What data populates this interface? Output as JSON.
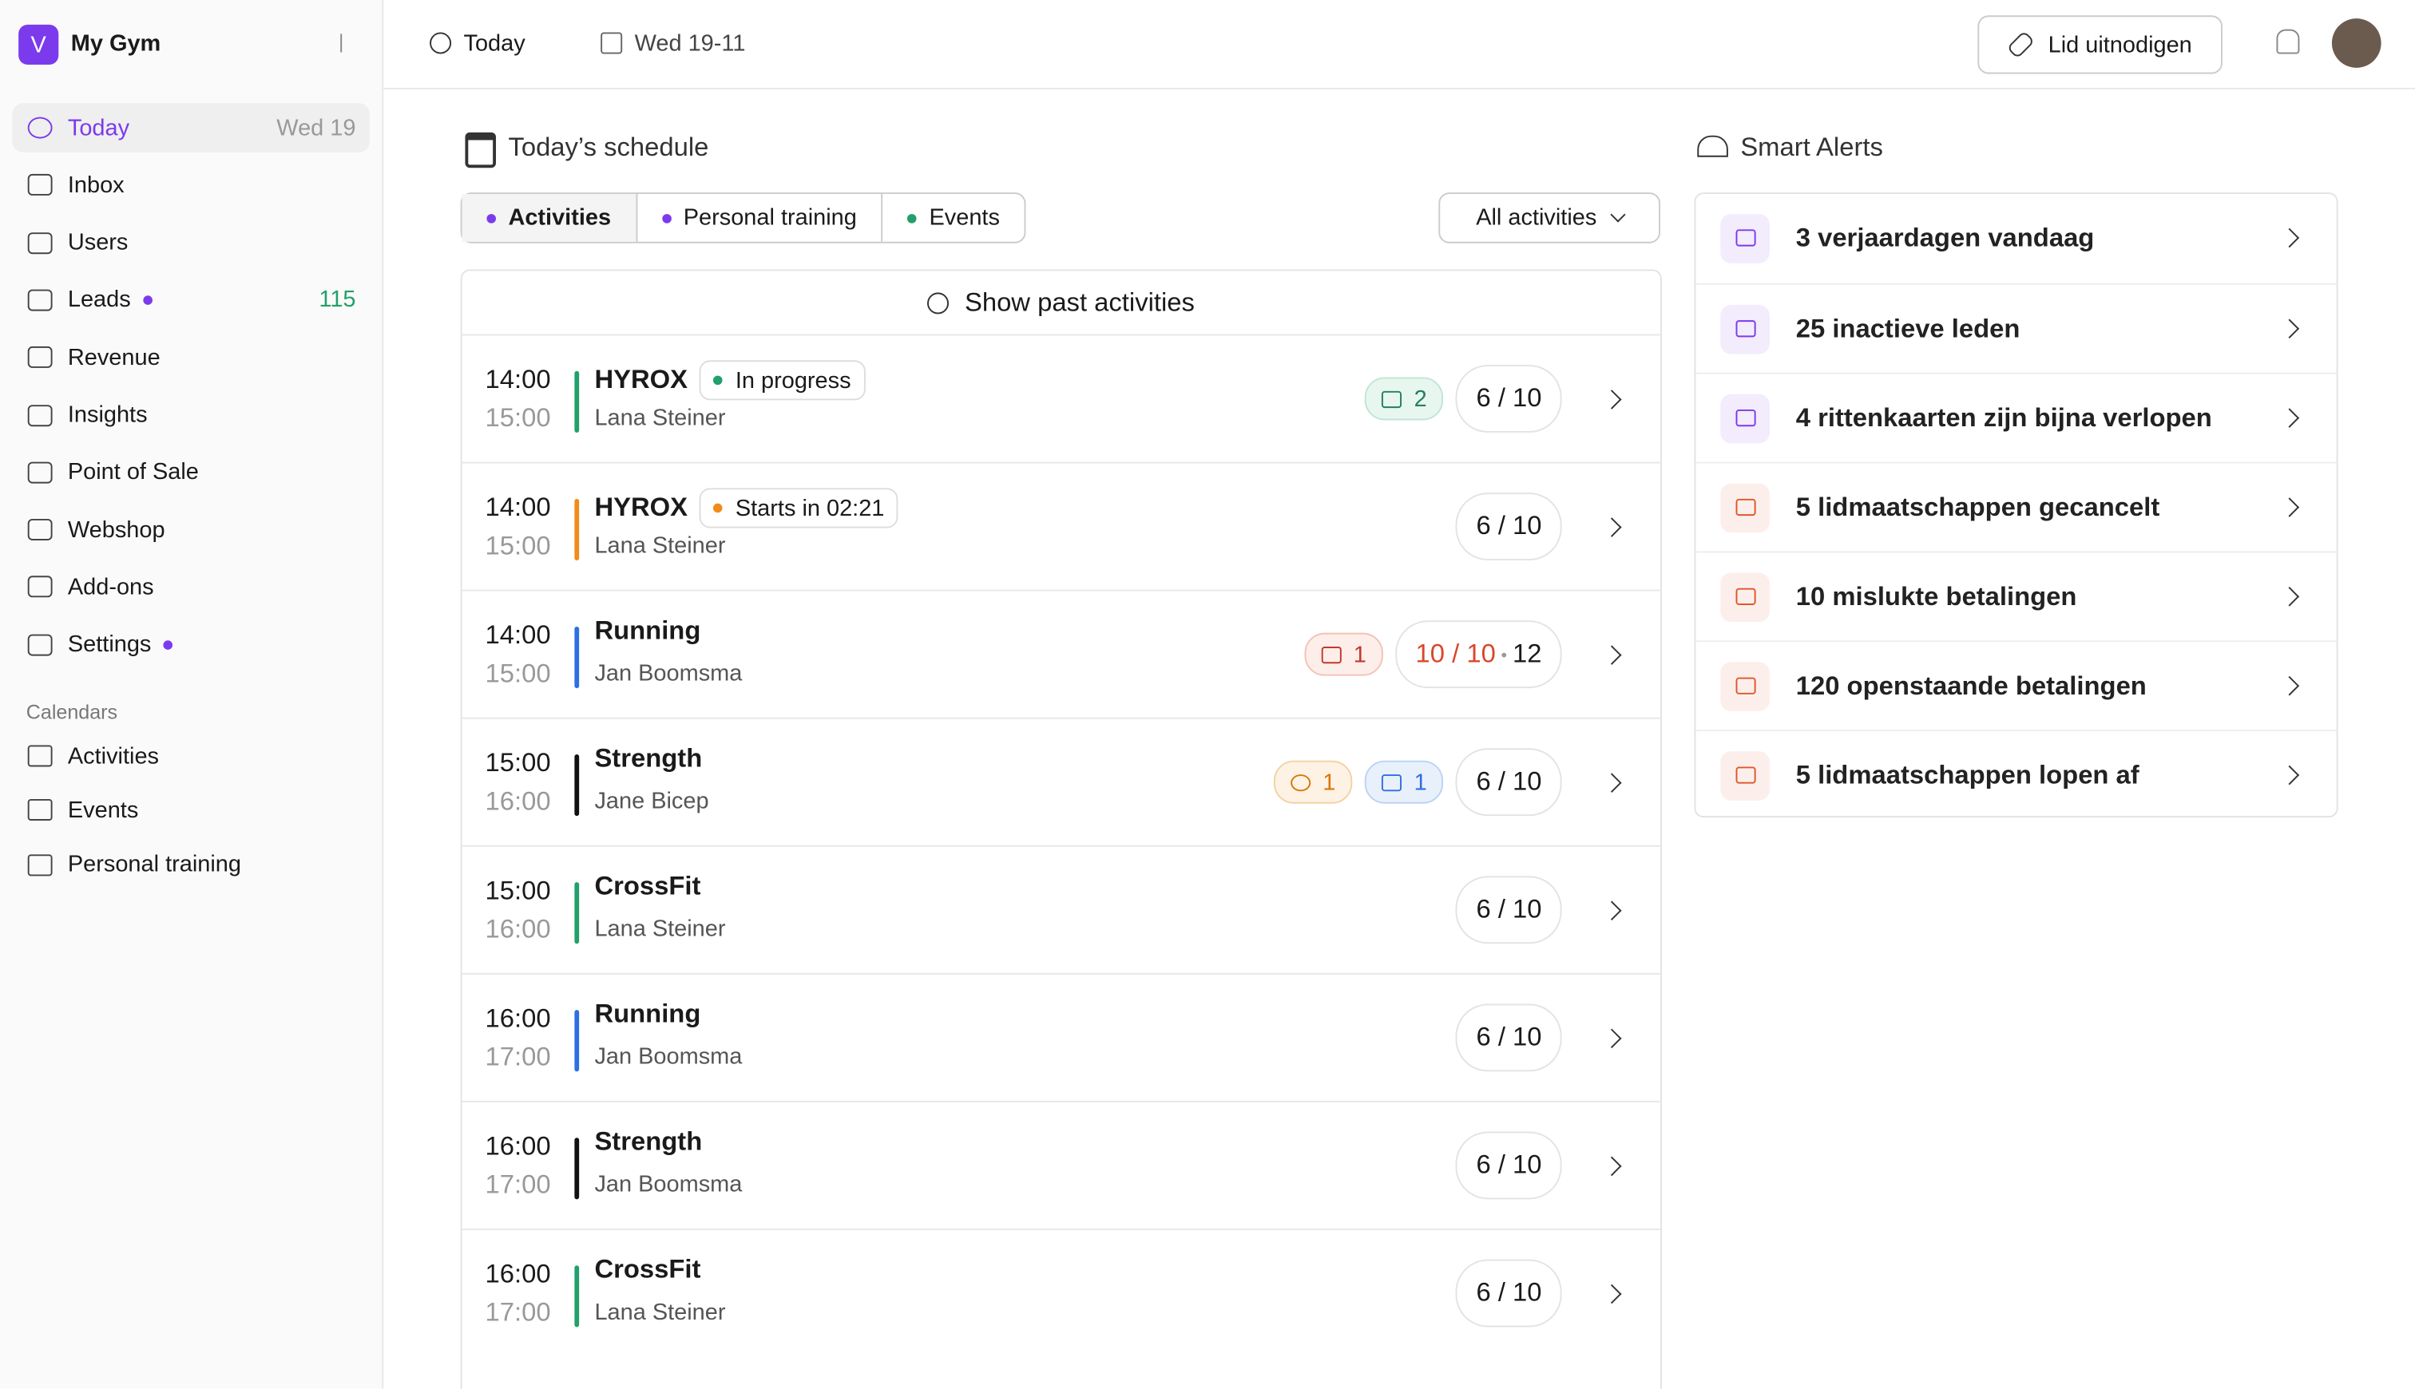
{
  "sidebar": {
    "brand_initial": "V",
    "brand": "My Gym",
    "nav": [
      {
        "label": "Today",
        "meta": "Wed 19",
        "active": true
      },
      {
        "label": "Inbox"
      },
      {
        "label": "Users"
      },
      {
        "label": "Leads",
        "dot": true,
        "meta": "115"
      },
      {
        "label": "Revenue"
      },
      {
        "label": "Insights"
      },
      {
        "label": "Point of Sale"
      },
      {
        "label": "Webshop"
      },
      {
        "label": "Add-ons"
      },
      {
        "label": "Settings",
        "dot": true
      }
    ],
    "section": "Calendars",
    "calendars": [
      "Activities",
      "Events",
      "Personal training"
    ]
  },
  "topbar": {
    "today": "Today",
    "date": "Wed 19-11",
    "invite": "Lid uitnodigen"
  },
  "schedule": {
    "title": "Today’s schedule",
    "tabs": [
      "Activities",
      "Personal training",
      "Events"
    ],
    "filter": "All activities",
    "past": "Show past activities",
    "rows": [
      {
        "start": "14:00",
        "end": "15:00",
        "name": "HYROX",
        "trainer": "Lana Steiner",
        "color": "#22a06b",
        "status": "In progress",
        "status_color": "#22a06b",
        "badges": [
          {
            "kind": "new",
            "count": "2"
          }
        ],
        "capacity": "6 / 10"
      },
      {
        "start": "14:00",
        "end": "15:00",
        "name": "HYROX",
        "trainer": "Lana Steiner",
        "color": "#f08c1a",
        "status": "Starts in 02:21",
        "status_color": "#f08c1a",
        "badges": [],
        "capacity": "6 / 10"
      },
      {
        "start": "14:00",
        "end": "15:00",
        "name": "Running",
        "trainer": "Jan Boomsma",
        "color": "#2f6fe0",
        "badges": [
          {
            "kind": "warn",
            "count": "1"
          }
        ],
        "capacity": "10 / 10",
        "waitlist": "12",
        "full": true
      },
      {
        "start": "15:00",
        "end": "16:00",
        "name": "Strength",
        "trainer": "Jane Bicep",
        "color": "#111111",
        "badges": [
          {
            "kind": "clock",
            "count": "1"
          },
          {
            "kind": "stats",
            "count": "1"
          }
        ],
        "capacity": "6 / 10"
      },
      {
        "start": "15:00",
        "end": "16:00",
        "name": "CrossFit",
        "trainer": "Lana Steiner",
        "color": "#22a06b",
        "badges": [],
        "capacity": "6 / 10"
      },
      {
        "start": "16:00",
        "end": "17:00",
        "name": "Running",
        "trainer": "Jan Boomsma",
        "color": "#2f6fe0",
        "badges": [],
        "capacity": "6 / 10"
      },
      {
        "start": "16:00",
        "end": "17:00",
        "name": "Strength",
        "trainer": "Jan Boomsma",
        "color": "#111111",
        "badges": [],
        "capacity": "6 / 10"
      },
      {
        "start": "16:00",
        "end": "17:00",
        "name": "CrossFit",
        "trainer": "Lana Steiner",
        "color": "#22a06b",
        "badges": [],
        "capacity": "6 / 10"
      }
    ]
  },
  "alerts": {
    "title": "Smart Alerts",
    "items": [
      {
        "text": "3 verjaardagen vandaag",
        "color": "#7c3aed"
      },
      {
        "text": "25 inactieve leden",
        "color": "#7c3aed"
      },
      {
        "text": "4 rittenkaarten zijn bijna verlopen",
        "color": "#7c3aed"
      },
      {
        "text": "5 lidmaatschappen gecancelt",
        "color": "#e0562a"
      },
      {
        "text": "10 mislukte betalingen",
        "color": "#e0562a"
      },
      {
        "text": "120 openstaande betalingen",
        "color": "#e0562a"
      },
      {
        "text": "5 lidmaatschappen lopen af",
        "color": "#e0562a"
      }
    ]
  }
}
